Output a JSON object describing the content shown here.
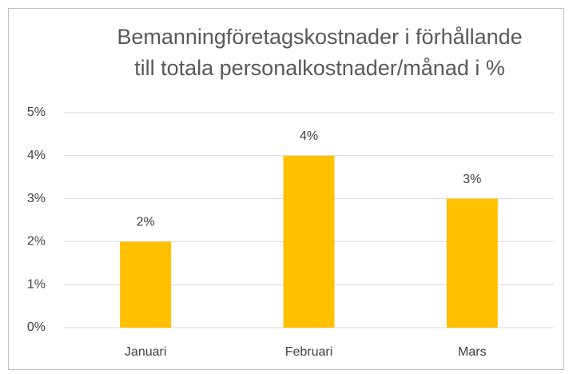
{
  "chart_data": {
    "type": "bar",
    "title": [
      "Bemanningföretagskostnader i förhållande",
      "till totala personalkostnader/månad i %"
    ],
    "categories": [
      "Januari",
      "Februari",
      "Mars"
    ],
    "values": [
      2,
      4,
      3
    ],
    "value_labels": [
      "2%",
      "4%",
      "3%"
    ],
    "color": "#ffc000",
    "ylim": [
      0,
      5
    ],
    "yticks": [
      {
        "value": 0,
        "label": "0%"
      },
      {
        "value": 1,
        "label": "1%"
      },
      {
        "value": 2,
        "label": "2%"
      },
      {
        "value": 3,
        "label": "3%"
      },
      {
        "value": 4,
        "label": "4%"
      },
      {
        "value": 5,
        "label": "5%"
      }
    ],
    "grid": true
  }
}
